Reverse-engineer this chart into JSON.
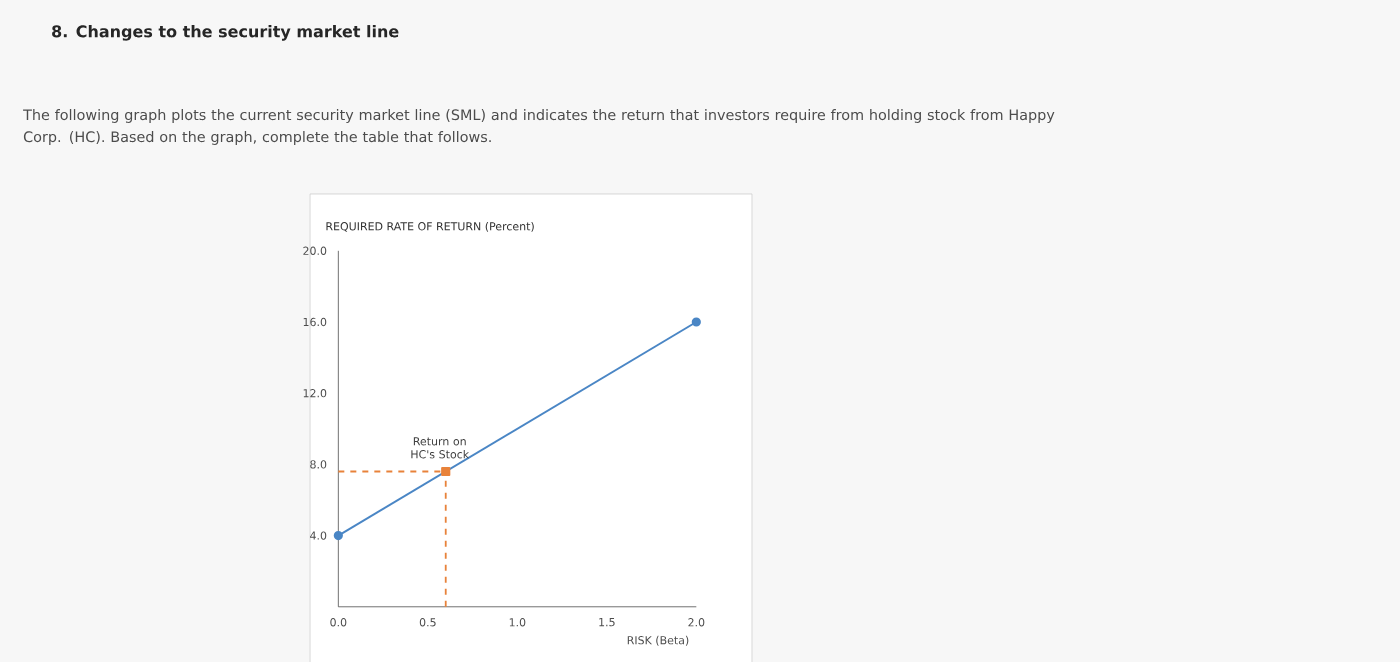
{
  "chart_data": {
    "type": "line",
    "title": "8. Changes to the security market line",
    "subtitle": "The following graph plots the current security market line (SML) and indicates the return that investors require from holding stock from Happy Corp. (HC). Based on the graph, complete the table that follows.",
    "ylabel": "REQUIRED RATE OF RETURN (Percent)",
    "xlabel": "RISK (Beta)",
    "xlim": [
      0,
      2
    ],
    "ylim": [
      0,
      20
    ],
    "xticks": [
      {
        "value": 0,
        "label": "0.0"
      },
      {
        "value": 0.5,
        "label": "0.5"
      },
      {
        "value": 1,
        "label": "1.0"
      },
      {
        "value": 1.5,
        "label": "1.5"
      },
      {
        "value": 2,
        "label": "2.0"
      }
    ],
    "yticks": [
      {
        "value": 4,
        "label": "4.0"
      },
      {
        "value": 8,
        "label": "8.0"
      },
      {
        "value": 12,
        "label": "12.0"
      },
      {
        "value": 16,
        "label": "16.0"
      },
      {
        "value": 20,
        "label": "20.0"
      }
    ],
    "series": [
      {
        "color": "#4a86c5",
        "x": [
          0,
          2
        ],
        "values": [
          4,
          16
        ],
        "marker": "circle"
      },
      {
        "type": "scatter",
        "color": "#e8823a",
        "x": [
          0.6
        ],
        "values": [
          7.6
        ],
        "marker": "square"
      }
    ],
    "ref_lines": [
      {
        "axis": "x",
        "value": 0.6,
        "color": "#e8823a",
        "line_style": "dashed"
      },
      {
        "axis": "y",
        "value": 7.6,
        "color": "#e8823a",
        "line_style": "dashed"
      }
    ],
    "annotations": [
      {
        "text": "Return on HC's Stock",
        "x": 0.6,
        "y": 7.6
      }
    ],
    "grid": false
  }
}
